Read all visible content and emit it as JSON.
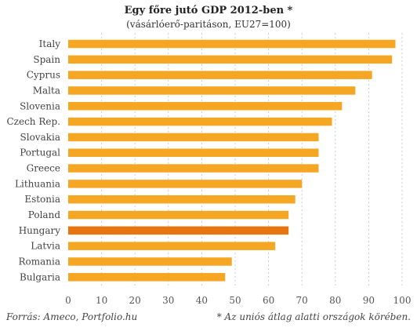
{
  "chart_data": {
    "type": "bar",
    "orientation": "horizontal",
    "title": "Egy főre jutó GDP 2012-ben  *",
    "subtitle": "(vásárlóerő-paritáson, EU27=100)",
    "categories": [
      "Italy",
      "Spain",
      "Cyprus",
      "Malta",
      "Slovenia",
      "Czech Rep.",
      "Slovakia",
      "Portugal",
      "Greece",
      "Lithuania",
      "Estonia",
      "Poland",
      "Hungary",
      "Latvia",
      "Romania",
      "Bulgaria"
    ],
    "values": [
      98,
      97,
      91,
      86,
      82,
      79,
      75,
      75,
      75,
      70,
      68,
      66,
      66,
      62,
      49,
      47
    ],
    "highlight_category": "Hungary",
    "xlim": [
      0,
      100
    ],
    "xticks": [
      "0",
      "10",
      "20",
      "30",
      "40",
      "50",
      "60",
      "70",
      "80",
      "90",
      "100"
    ],
    "grid": "vertical dashed",
    "colors": {
      "bar": "#F5A623",
      "highlight": "#E8750F",
      "grid": "#cccccc"
    }
  },
  "footer": {
    "source": "Forrás: Ameco, Portfolio.hu",
    "note": "* Az uniós átlag alatti országok körében."
  }
}
